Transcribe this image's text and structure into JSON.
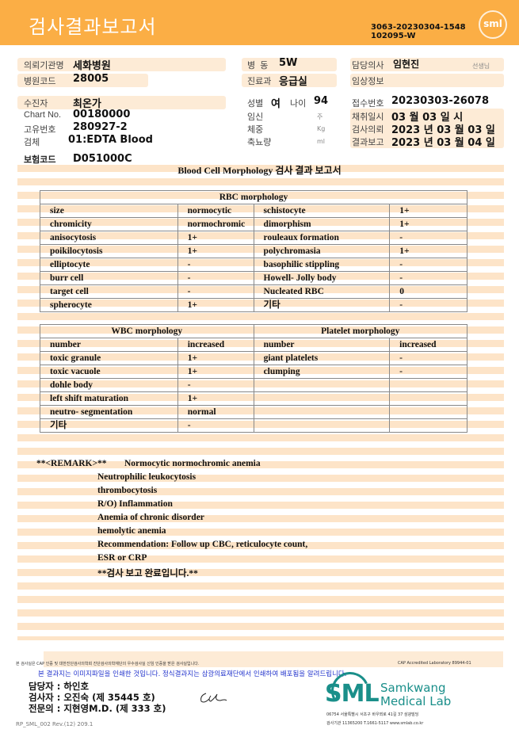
{
  "header": {
    "title": "검사결과보고서",
    "code_line1": "3063-20230304-1548",
    "code_line2": "102095-W",
    "logo": "sml"
  },
  "info": {
    "institution_label": "의뢰기관명",
    "institution": "세화병원",
    "hospital_code_label": "병원코드",
    "hospital_code": "28005",
    "ward_label": "병  동",
    "ward": "5W",
    "dept_label": "진료과",
    "dept": "응급실",
    "doctor_label": "담당의사",
    "doctor": "임현진",
    "doctor_suffix": "선생님",
    "clinical_label": "임상정보",
    "patient_label": "수진자",
    "patient": "최온가",
    "chart_label": "Chart No.",
    "chart": "00180000",
    "id_label": "고유번호",
    "id": "280927-2",
    "specimen_label": "검체",
    "specimen": "01:EDTA Blood",
    "insurance_label": "보험코드",
    "insurance": "D051000C",
    "sex_label": "성별",
    "sex": "여",
    "age_label": "나이",
    "age": "94",
    "pregnancy_label": "임신",
    "pregnancy_unit": "주",
    "weight_label": "체중",
    "weight_unit": "Kg",
    "urine_label": "축뇨량",
    "urine_unit": "ml",
    "receipt_label": "접수번호",
    "receipt": "20230303-26078",
    "collect_label": "채취일시",
    "collect": "03 월 03 일 시",
    "request_label": "검사의뢰",
    "request": "2023 년 03 월 03 일",
    "report_label": "결과보고",
    "report": "2023 년 03 월 04 일"
  },
  "section_title": "Blood Cell Morphology 검사 결과 보고서",
  "rbc": {
    "title": "RBC morphology",
    "rows": [
      [
        "size",
        "normocytic",
        "schistocyte",
        "1+"
      ],
      [
        "chromicity",
        "normochromic",
        "dimorphism",
        "1+"
      ],
      [
        "anisocytosis",
        "1+",
        "rouleaux formation",
        "-"
      ],
      [
        "poikilocytosis",
        "1+",
        "polychromasia",
        "1+"
      ],
      [
        "elliptocyte",
        "-",
        "basophilic stippling",
        "-"
      ],
      [
        "burr cell",
        "-",
        "Howell- Jolly body",
        "-"
      ],
      [
        "target cell",
        "-",
        "Nucleated RBC",
        "0"
      ],
      [
        "spherocyte",
        "1+",
        "기타",
        "-"
      ]
    ]
  },
  "wbc": {
    "title": "WBC morphology",
    "platelet_title": "Platelet morphology",
    "rows": [
      [
        "number",
        "increased",
        "number",
        "increased"
      ],
      [
        "toxic granule",
        "1+",
        "giant platelets",
        "-"
      ],
      [
        "toxic vacuole",
        "1+",
        "clumping",
        "-"
      ],
      [
        "dohle body",
        "-",
        "",
        ""
      ],
      [
        "left shift maturation",
        "1+",
        "",
        ""
      ],
      [
        "neutro- segmentation",
        "normal",
        "",
        ""
      ],
      [
        "기타",
        "-",
        "",
        ""
      ]
    ]
  },
  "remark": {
    "label": "**<REMARK>**",
    "lines": [
      "Normocytic normochromic anemia",
      "Neutrophilic leukocytosis",
      "thrombocytosis",
      "R/O) Inflammation",
      "Anemia of chronic disorder",
      "hemolytic anemia",
      "Recommendation:  Follow up CBC, reticulocyte count,",
      "ESR or CRP",
      "**검사  보고  완료입니다.**"
    ]
  },
  "footer": {
    "cert_text": "본 검사실은 CAP 인증 및 대한진단검사의학회 진단검사의학재단의 우수검사실 신임 인증을 받은 검사실입니다.",
    "cap_text": "CAP Accredited Laboratory 89944-01",
    "notice": "본 결과지는 이미지파일을 인쇄한 것입니다. 정식결과지는 삼광의료재단에서 인쇄하여 배포됨을 알려드립니다.",
    "manager": "담당자 : 하인호",
    "tester": "검사자 : 오진숙 (제 35445 호)",
    "specialist": "전문의 : 지현영M.D. (제 333 호)",
    "lab_logo": "SML",
    "lab_name1": "Samkwang",
    "lab_name2": "Medical Lab",
    "address": "06754 서울특별시 서초구 바우뫼로 41길 37 삼광빌딩",
    "contact": "검사기관 11365200 T.1661-5117 www.smlab.co.kr",
    "form_code": "RP_SML_002 Rev.(12) 209.1"
  }
}
